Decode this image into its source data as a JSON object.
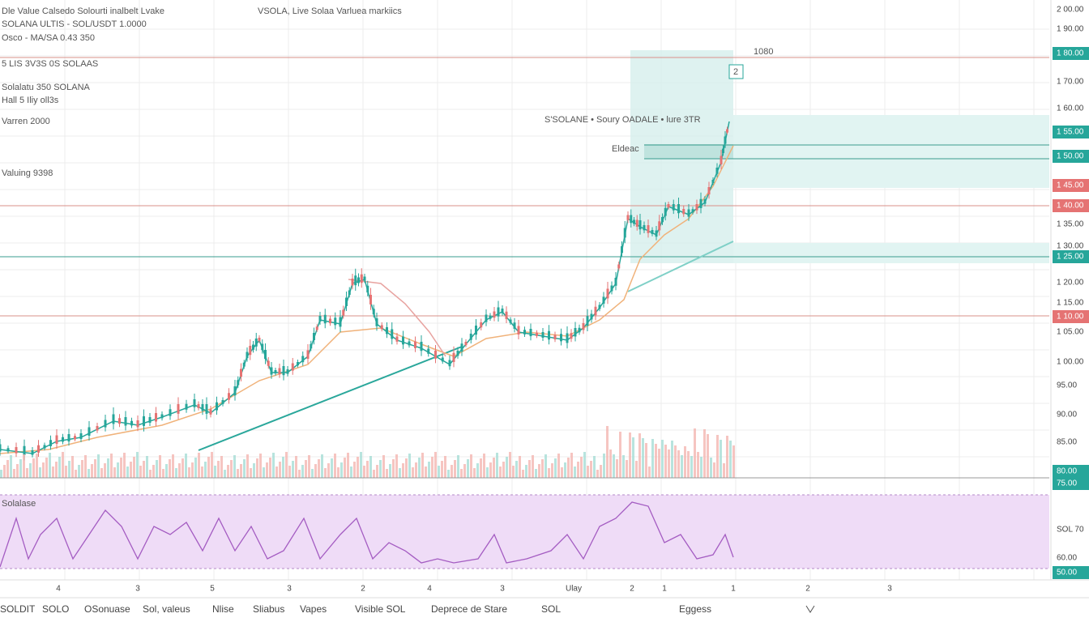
{
  "header": {
    "prefix": "Dle Value Calsedo Solourti inalbelt Lvake",
    "title": "VSOLA, Live Solaa Varluea markiics"
  },
  "legend": [
    "SOLANA ULTIS - SOL/USDT 1.0000",
    "Osco - MA/SA 0.43 350",
    "5 LIS 3V3S 0S SOLAAS",
    "Solalatu 350 SOLANA",
    "Hall 5 Iliy oll3s",
    "Varren 2000",
    "Valuing 9398"
  ],
  "annotations": {
    "box_label": "2",
    "top_tag": "1080",
    "series_note": "S'SOLANE • Soury OADALE • lure 3TR",
    "box_sub": "Eldeac",
    "rsi_label": "Solalase"
  },
  "axis_labels": [
    "2 00.00",
    "1 90.00",
    "1 80.00",
    "1 70.00",
    "1 60.00",
    "1 55.00",
    "1 50.00",
    "1 45.00",
    "1 40.00",
    "1 35.00",
    "1 30.00",
    "1 25.00",
    "1 20.00",
    "1 15.00",
    "1 10.00",
    "1 05.00",
    "1 00.00",
    "95.00",
    "90.00",
    "85.00",
    "80.00",
    "75.00",
    "SOL 70",
    "60.00",
    "50.00"
  ],
  "x_labels": [
    "4",
    "3",
    "5",
    "3",
    "2",
    "4",
    "3",
    "Ulay",
    "2",
    "1",
    "1",
    "2",
    "3"
  ],
  "toolbar": [
    "SOLDIT",
    "SOLO",
    "OSonuase",
    "Sol, valeus",
    "Nlise",
    "Sliabus",
    "Vapes",
    "Visible SOL",
    "Deprece de Stare",
    "SOL",
    "Eggess"
  ]
}
